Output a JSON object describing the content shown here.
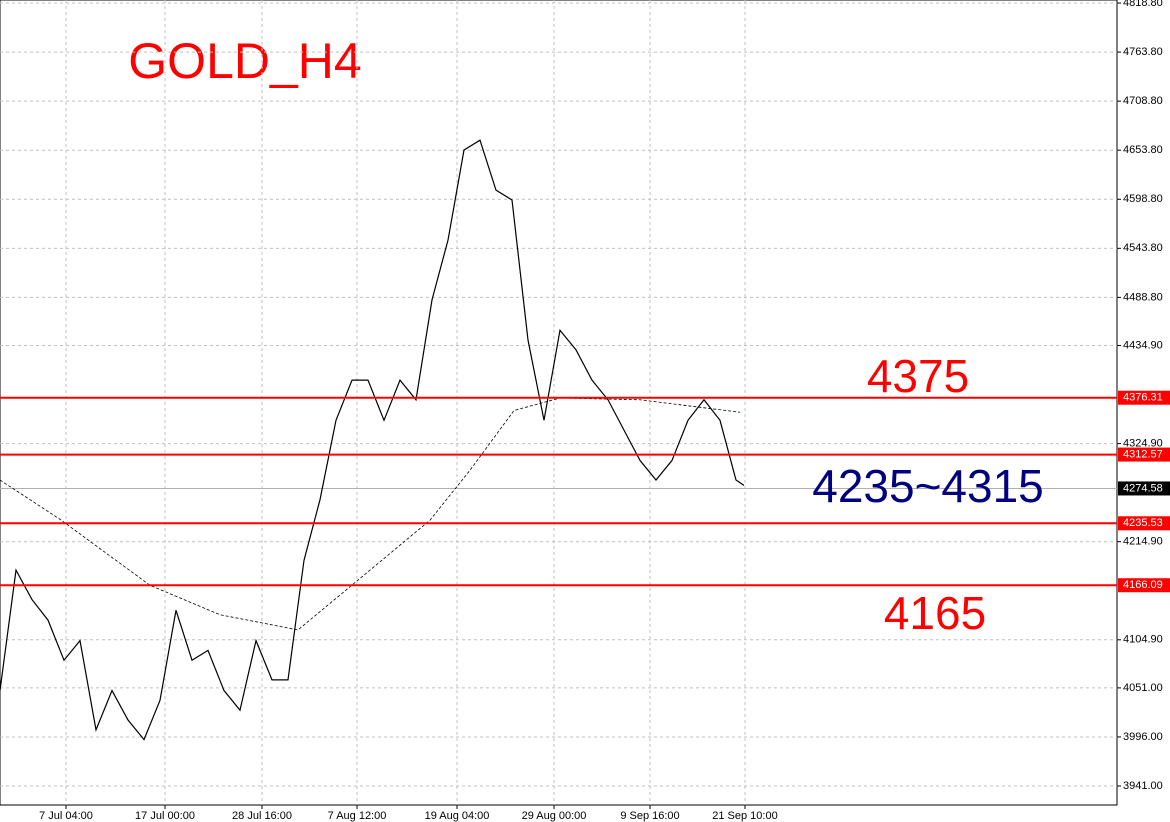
{
  "chart_data": {
    "type": "line",
    "title": "GOLD_H4",
    "annotations": [
      {
        "text": "4375",
        "color": "#ff0000"
      },
      {
        "text": "4235~4315",
        "color": "#000080"
      },
      {
        "text": "4165",
        "color": "#ff0000"
      }
    ],
    "x": [
      0,
      8,
      16,
      24,
      32,
      40,
      48,
      56,
      64,
      72,
      80,
      88,
      96,
      104,
      112,
      120,
      128,
      136,
      144,
      152,
      160,
      168,
      176,
      184,
      192,
      200,
      208,
      216,
      224,
      232,
      240,
      248,
      256,
      264,
      272,
      280,
      288,
      296,
      304,
      312,
      320,
      328,
      336,
      344,
      352,
      360,
      368,
      372
    ],
    "series": [
      {
        "color": "#000000",
        "dashed": false,
        "values": [
          4048,
          4183,
          4150,
          4127,
          4082,
          4104,
          4004,
          4048,
          4015,
          3993,
          4037,
          4138,
          4082,
          4093,
          4048,
          4026,
          4104,
          4060,
          4060,
          4194,
          4262,
          4351,
          4396,
          4396,
          4351,
          4396,
          4374,
          4486,
          4553,
          4654,
          4665,
          4609,
          4598,
          4441,
          4351,
          4452,
          4430,
          4396,
          4374,
          4340,
          4306,
          4284,
          4306,
          4351,
          4374,
          4351,
          4284,
          4278
        ]
      },
      {
        "color": "#000000",
        "dashed": true,
        "x": [
          0,
          30,
          75,
          110,
          149,
          185,
          215,
          235,
          257,
          280,
          320,
          370
        ],
        "values": [
          4284,
          4240,
          4166,
          4133,
          4116,
          4183,
          4239,
          4295,
          4362,
          4376,
          4374,
          4360
        ]
      }
    ],
    "levels": [
      {
        "value": 4376.31,
        "color": "#ff0000"
      },
      {
        "value": 4312.57,
        "color": "#ff0000"
      },
      {
        "value": 4235.53,
        "color": "#ff0000"
      },
      {
        "value": 4166.09,
        "color": "#ff0000"
      }
    ],
    "last_price": 4274.58,
    "xlim": [
      0,
      558.5
    ],
    "xticks": [
      {
        "value": 33,
        "label": "7 Jul 04:00"
      },
      {
        "value": 82.5,
        "label": "17 Jul 00:00"
      },
      {
        "value": 131,
        "label": "28 Jul 16:00"
      },
      {
        "value": 178.5,
        "label": "7 Aug 12:00"
      },
      {
        "value": 228.5,
        "label": "19 Aug 04:00"
      },
      {
        "value": 277,
        "label": "29 Aug 00:00"
      },
      {
        "value": 325,
        "label": "9 Sep 16:00"
      },
      {
        "value": 372.5,
        "label": "21 Sep 10:00"
      }
    ],
    "ylim": [
      3919.7,
      4822.2
    ],
    "yticks": [
      {
        "value": 4818.8,
        "label": "4818.80"
      },
      {
        "value": 4763.8,
        "label": "4763.80"
      },
      {
        "value": 4708.8,
        "label": "4708.80"
      },
      {
        "value": 4653.8,
        "label": "4653.80"
      },
      {
        "value": 4598.8,
        "label": "4598.80"
      },
      {
        "value": 4543.8,
        "label": "4543.80"
      },
      {
        "value": 4488.8,
        "label": "4488.80"
      },
      {
        "value": 4434.9,
        "label": "4434.90"
      },
      {
        "value": 4324.9,
        "label": "4324.90"
      },
      {
        "value": 4214.9,
        "label": "4214.90"
      },
      {
        "value": 4104.9,
        "label": "4104.90"
      },
      {
        "value": 4051,
        "label": "4051.00"
      },
      {
        "value": 3996,
        "label": "3996.00"
      },
      {
        "value": 3941,
        "label": "3941.00"
      }
    ],
    "grid": true
  }
}
